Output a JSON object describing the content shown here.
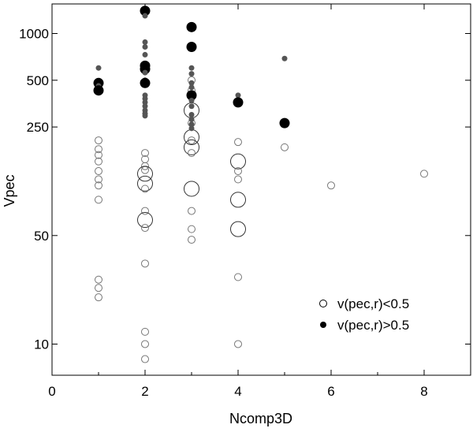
{
  "chart_data": {
    "type": "scatter",
    "xlabel": "Ncomp3D",
    "ylabel": "Vpec",
    "xlim": [
      0,
      9
    ],
    "ylim": [
      6.3,
      1550
    ],
    "y_scale": "log",
    "grid": false,
    "legend_position": "bottom-right",
    "x_ticks": [
      0,
      2,
      4,
      6,
      8
    ],
    "x_tick_labels": [
      "0",
      "2",
      "4",
      "6",
      "8"
    ],
    "y_ticks": [
      10,
      50,
      250,
      500,
      1000
    ],
    "y_tick_labels": [
      "10",
      "50",
      "250",
      "500",
      "1000"
    ],
    "legend": [
      {
        "label": "v(pec,r)<0.5",
        "marker": "open-circle"
      },
      {
        "label": "v(pec,r)>0.5",
        "marker": "filled-circle"
      }
    ],
    "series": [
      {
        "legend_label": "v(pec,r)<0.5",
        "marker": "open-circle",
        "points": [
          {
            "x": 1,
            "y": 205,
            "size": "small"
          },
          {
            "x": 1,
            "y": 180,
            "size": "small"
          },
          {
            "x": 1,
            "y": 165,
            "size": "small"
          },
          {
            "x": 1,
            "y": 150,
            "size": "small"
          },
          {
            "x": 1,
            "y": 130,
            "size": "small"
          },
          {
            "x": 1,
            "y": 115,
            "size": "small"
          },
          {
            "x": 1,
            "y": 105,
            "size": "small"
          },
          {
            "x": 1,
            "y": 85,
            "size": "small"
          },
          {
            "x": 1,
            "y": 26,
            "size": "small"
          },
          {
            "x": 1,
            "y": 23,
            "size": "small"
          },
          {
            "x": 1,
            "y": 20,
            "size": "small"
          },
          {
            "x": 2,
            "y": 170,
            "size": "small"
          },
          {
            "x": 2,
            "y": 155,
            "size": "small"
          },
          {
            "x": 2,
            "y": 140,
            "size": "small"
          },
          {
            "x": 2,
            "y": 132,
            "size": "small"
          },
          {
            "x": 2,
            "y": 125,
            "size": "large"
          },
          {
            "x": 2,
            "y": 108,
            "size": "large"
          },
          {
            "x": 2,
            "y": 100,
            "size": "small"
          },
          {
            "x": 2,
            "y": 72,
            "size": "small"
          },
          {
            "x": 2,
            "y": 63,
            "size": "large"
          },
          {
            "x": 2,
            "y": 56,
            "size": "small"
          },
          {
            "x": 2,
            "y": 33,
            "size": "small"
          },
          {
            "x": 2,
            "y": 12,
            "size": "small"
          },
          {
            "x": 2,
            "y": 10,
            "size": "small"
          },
          {
            "x": 2,
            "y": 8,
            "size": "small"
          },
          {
            "x": 3,
            "y": 500,
            "size": "small"
          },
          {
            "x": 3,
            "y": 430,
            "size": "small"
          },
          {
            "x": 3,
            "y": 320,
            "size": "large"
          },
          {
            "x": 3,
            "y": 265,
            "size": "small"
          },
          {
            "x": 3,
            "y": 215,
            "size": "large"
          },
          {
            "x": 3,
            "y": 205,
            "size": "small"
          },
          {
            "x": 3,
            "y": 185,
            "size": "large"
          },
          {
            "x": 3,
            "y": 170,
            "size": "small"
          },
          {
            "x": 3,
            "y": 100,
            "size": "large"
          },
          {
            "x": 3,
            "y": 72,
            "size": "small"
          },
          {
            "x": 3,
            "y": 55,
            "size": "small"
          },
          {
            "x": 3,
            "y": 47,
            "size": "small"
          },
          {
            "x": 4,
            "y": 200,
            "size": "small"
          },
          {
            "x": 4,
            "y": 150,
            "size": "large"
          },
          {
            "x": 4,
            "y": 130,
            "size": "small"
          },
          {
            "x": 4,
            "y": 115,
            "size": "small"
          },
          {
            "x": 4,
            "y": 85,
            "size": "large"
          },
          {
            "x": 4,
            "y": 55,
            "size": "large"
          },
          {
            "x": 4,
            "y": 27,
            "size": "small"
          },
          {
            "x": 4,
            "y": 10,
            "size": "small"
          },
          {
            "x": 5,
            "y": 185,
            "size": "small"
          },
          {
            "x": 6,
            "y": 105,
            "size": "small"
          },
          {
            "x": 8,
            "y": 125,
            "size": "small"
          }
        ]
      },
      {
        "legend_label": "v(pec,r)>0.5",
        "marker": "filled-circle",
        "points": [
          {
            "x": 1,
            "y": 600,
            "size": "small"
          },
          {
            "x": 1,
            "y": 480,
            "size": "large"
          },
          {
            "x": 1,
            "y": 460,
            "size": "small"
          },
          {
            "x": 1,
            "y": 430,
            "size": "large"
          },
          {
            "x": 2,
            "y": 1400,
            "size": "large"
          },
          {
            "x": 2,
            "y": 1300,
            "size": "small"
          },
          {
            "x": 2,
            "y": 880,
            "size": "small"
          },
          {
            "x": 2,
            "y": 820,
            "size": "small"
          },
          {
            "x": 2,
            "y": 730,
            "size": "small"
          },
          {
            "x": 2,
            "y": 620,
            "size": "large"
          },
          {
            "x": 2,
            "y": 590,
            "size": "large"
          },
          {
            "x": 2,
            "y": 560,
            "size": "small"
          },
          {
            "x": 2,
            "y": 500,
            "size": "small"
          },
          {
            "x": 2,
            "y": 480,
            "size": "large"
          },
          {
            "x": 2,
            "y": 400,
            "size": "small"
          },
          {
            "x": 2,
            "y": 380,
            "size": "small"
          },
          {
            "x": 2,
            "y": 360,
            "size": "small"
          },
          {
            "x": 2,
            "y": 340,
            "size": "small"
          },
          {
            "x": 2,
            "y": 320,
            "size": "small"
          },
          {
            "x": 2,
            "y": 305,
            "size": "small"
          },
          {
            "x": 2,
            "y": 295,
            "size": "small"
          },
          {
            "x": 3,
            "y": 1100,
            "size": "large"
          },
          {
            "x": 3,
            "y": 820,
            "size": "large"
          },
          {
            "x": 3,
            "y": 600,
            "size": "small"
          },
          {
            "x": 3,
            "y": 550,
            "size": "small"
          },
          {
            "x": 3,
            "y": 480,
            "size": "small"
          },
          {
            "x": 3,
            "y": 450,
            "size": "small"
          },
          {
            "x": 3,
            "y": 400,
            "size": "large"
          },
          {
            "x": 3,
            "y": 370,
            "size": "small"
          },
          {
            "x": 3,
            "y": 340,
            "size": "small"
          },
          {
            "x": 3,
            "y": 300,
            "size": "small"
          },
          {
            "x": 3,
            "y": 280,
            "size": "small"
          },
          {
            "x": 3,
            "y": 260,
            "size": "small"
          },
          {
            "x": 3,
            "y": 245,
            "size": "small"
          },
          {
            "x": 4,
            "y": 400,
            "size": "small"
          },
          {
            "x": 4,
            "y": 360,
            "size": "large"
          },
          {
            "x": 5,
            "y": 690,
            "size": "small"
          },
          {
            "x": 5,
            "y": 265,
            "size": "large"
          }
        ]
      }
    ]
  }
}
